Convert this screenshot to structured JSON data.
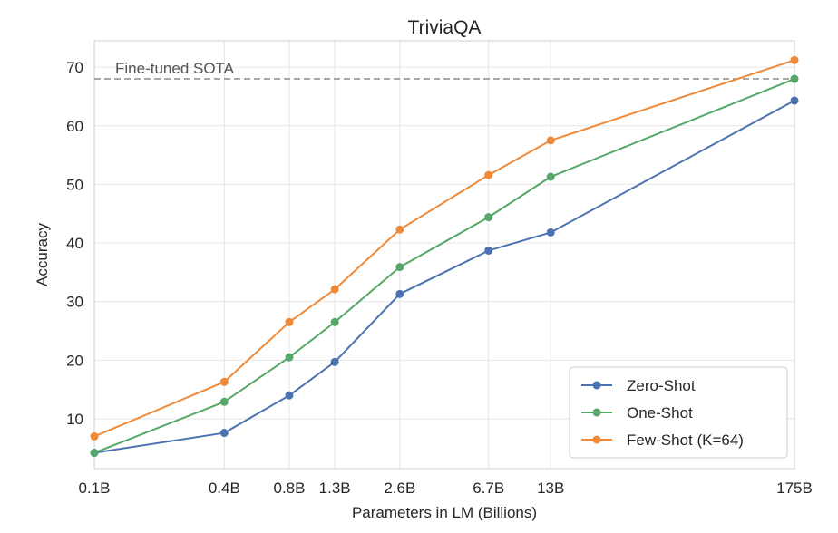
{
  "chart_data": {
    "type": "line",
    "title": "TriviaQA",
    "xlabel": "Parameters in LM (Billions)",
    "ylabel": "Accuracy",
    "x_scale": "log",
    "x_values": [
      0.1,
      0.4,
      0.8,
      1.3,
      2.6,
      6.7,
      13,
      175
    ],
    "x_tick_labels": [
      "0.1B",
      "0.4B",
      "0.8B",
      "1.3B",
      "2.6B",
      "6.7B",
      "13B",
      "175B"
    ],
    "y_ticks": [
      10,
      20,
      30,
      40,
      50,
      60,
      70
    ],
    "ylim": [
      1.5,
      74.5
    ],
    "grid": true,
    "legend_position": "lower-right",
    "series": [
      {
        "name": "Zero-Shot",
        "color": "#4c72b0",
        "values": [
          4.2,
          7.6,
          14.0,
          19.7,
          31.3,
          38.7,
          41.8,
          64.3
        ]
      },
      {
        "name": "One-Shot",
        "color": "#55a868",
        "values": [
          4.2,
          12.9,
          20.5,
          26.5,
          35.9,
          44.4,
          51.3,
          68.0
        ]
      },
      {
        "name": "Few-Shot (K=64)",
        "color": "#ee8a3a",
        "values": [
          7.0,
          16.3,
          26.5,
          32.1,
          42.3,
          51.6,
          57.5,
          71.2
        ]
      }
    ],
    "reference_line": {
      "label": "Fine-tuned SOTA",
      "value": 68.0,
      "color": "#8c8c8c"
    }
  }
}
